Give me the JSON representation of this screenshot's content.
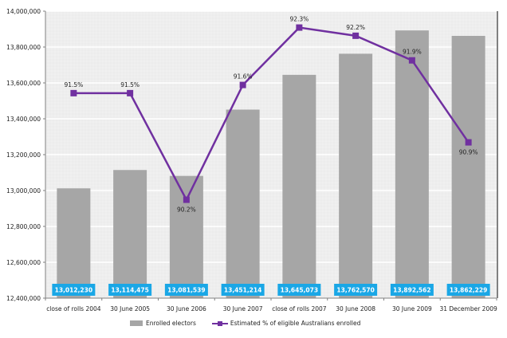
{
  "chart_data": {
    "type": "bar",
    "title": "",
    "xlabel": "",
    "ylabel": "",
    "ylim": [
      12400000,
      14000000
    ],
    "y_ticks": [
      "12,400,000",
      "12,600,000",
      "12,800,000",
      "13,000,000",
      "13,200,000",
      "13,400,000",
      "13,600,000",
      "13,800,000",
      "14,000,000"
    ],
    "y_tick_values": [
      12400000,
      12600000,
      12800000,
      13000000,
      13200000,
      13400000,
      13600000,
      13800000,
      14000000
    ],
    "y2lim": [
      89.0,
      92.5
    ],
    "grid": true,
    "legend_position": "bottom",
    "categories": [
      "close of rolls 2004",
      "30 June 2005",
      "30 June 2006",
      "30 June 2007",
      "close of rolls 2007",
      "30 June 2008",
      "30 June 2009",
      "31 December 2009"
    ],
    "series": [
      {
        "name": "Enrolled electors",
        "type": "bar",
        "color": "#a6a6a6",
        "values": [
          13012230,
          13114475,
          13081539,
          13451214,
          13645073,
          13762570,
          13892562,
          13862229
        ],
        "labels": [
          "13,012,230",
          "13,114,475",
          "13,081,539",
          "13,451,214",
          "13,645,073",
          "13,762,570",
          "13,892,562",
          "13,862,229"
        ],
        "label_box_color": "#1aa7e6"
      },
      {
        "name": "Estimated % of eligible Australians enrolled",
        "type": "line",
        "axis": "secondary",
        "color": "#7030a0",
        "values": [
          91.5,
          91.5,
          90.2,
          91.6,
          92.3,
          92.2,
          91.9,
          90.9
        ],
        "labels": [
          "91.5%",
          "91.5%",
          "90.2%",
          "91.6%",
          "92.3%",
          "92.2%",
          "91.9%",
          "90.9%"
        ],
        "label_positions": [
          "above",
          "above",
          "below",
          "above",
          "above",
          "above",
          "above",
          "below"
        ]
      }
    ]
  },
  "legend": {
    "bar_label": "Enrolled electors",
    "line_label": "Estimated % of eligible Australians enrolled"
  }
}
